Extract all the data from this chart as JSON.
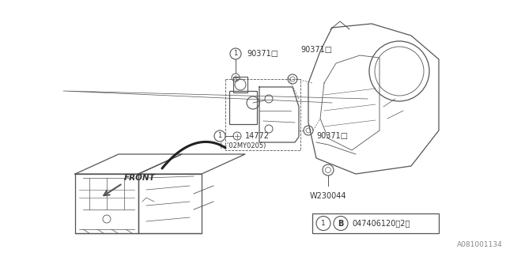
{
  "background_color": "#ffffff",
  "line_color": "#555555",
  "text_color": "#333333",
  "watermark": "A081001134",
  "figsize": [
    6.4,
    3.2
  ],
  "dpi": 100,
  "label_90371_top": "90371□",
  "label_90371_bot": "90371□",
  "label_14772": "14772",
  "label_14772_sub": "( -’02MY0205)",
  "label_W230044": "W230044",
  "label_front": "FRONT",
  "box_text": "047406120（2）"
}
